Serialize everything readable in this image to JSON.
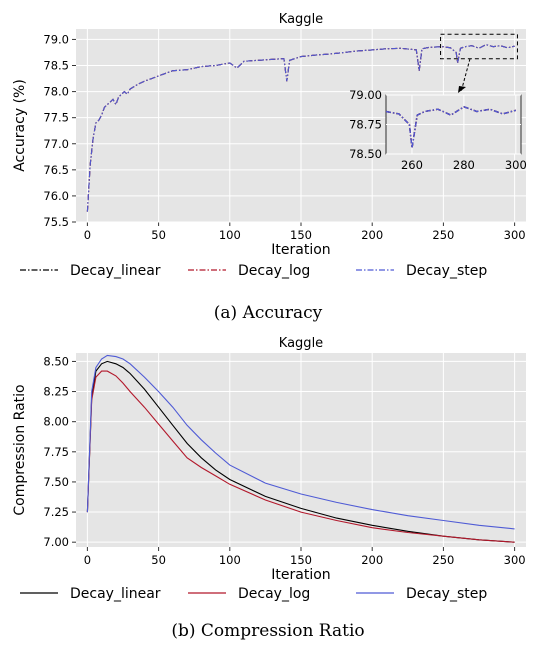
{
  "chart_data": [
    {
      "type": "line",
      "title": "Kaggle",
      "xlabel": "Iteration",
      "ylabel": "Accuracy (%)",
      "xlim": [
        -8,
        308
      ],
      "ylim": [
        75.5,
        79.2
      ],
      "xticks": [
        0,
        50,
        100,
        150,
        200,
        250,
        300
      ],
      "yticks": [
        75.5,
        76.0,
        76.5,
        77.0,
        77.5,
        78.0,
        78.5,
        79.0
      ],
      "xtick_labels": [
        "0",
        "50",
        "100",
        "150",
        "200",
        "250",
        "300"
      ],
      "ytick_labels": [
        "75.5",
        "76.0",
        "76.5",
        "77.0",
        "77.5",
        "78.0",
        "78.5",
        "79.0"
      ],
      "grid": true,
      "legend": "below",
      "caption": "(a) Accuracy",
      "series": [
        {
          "name": "Decay_linear",
          "color": "#000000",
          "dash": "dashdot",
          "x": [
            0,
            2,
            4,
            6,
            8,
            10,
            12,
            14,
            16,
            18,
            20,
            22,
            24,
            26,
            28,
            30,
            33,
            36,
            40,
            45,
            50,
            55,
            60,
            70,
            80,
            90,
            100,
            105,
            110,
            120,
            130,
            138,
            140,
            142,
            150,
            160,
            170,
            180,
            190,
            200,
            210,
            220,
            231,
            233,
            235,
            240,
            250,
            255,
            259,
            260,
            262,
            265,
            270,
            275,
            280,
            285,
            290,
            295,
            300
          ],
          "y": [
            75.7,
            76.6,
            77.1,
            77.4,
            77.45,
            77.55,
            77.7,
            77.75,
            77.8,
            77.85,
            77.75,
            77.9,
            77.95,
            78.0,
            77.95,
            78.05,
            78.1,
            78.15,
            78.2,
            78.25,
            78.3,
            78.35,
            78.4,
            78.42,
            78.48,
            78.5,
            78.55,
            78.45,
            78.58,
            78.6,
            78.62,
            78.63,
            78.2,
            78.6,
            78.67,
            78.7,
            78.72,
            78.75,
            78.78,
            78.8,
            78.82,
            78.83,
            78.8,
            78.4,
            78.82,
            78.85,
            78.86,
            78.84,
            78.75,
            78.55,
            78.83,
            78.86,
            78.88,
            78.83,
            78.9,
            78.86,
            78.88,
            78.84,
            78.87
          ]
        },
        {
          "name": "Decay_log",
          "color": "#b2182b",
          "dash": "dashdot",
          "x": [
            0,
            2,
            4,
            6,
            8,
            10,
            12,
            14,
            16,
            18,
            20,
            22,
            24,
            26,
            28,
            30,
            33,
            36,
            40,
            45,
            50,
            55,
            60,
            70,
            80,
            90,
            100,
            105,
            110,
            120,
            130,
            138,
            140,
            142,
            150,
            160,
            170,
            180,
            190,
            200,
            210,
            220,
            231,
            233,
            235,
            240,
            250,
            255,
            259,
            260,
            262,
            265,
            270,
            275,
            280,
            285,
            290,
            295,
            300
          ],
          "y": [
            75.7,
            76.6,
            77.1,
            77.4,
            77.45,
            77.55,
            77.7,
            77.75,
            77.8,
            77.85,
            77.75,
            77.9,
            77.95,
            78.0,
            77.95,
            78.05,
            78.1,
            78.15,
            78.2,
            78.25,
            78.3,
            78.35,
            78.4,
            78.42,
            78.48,
            78.5,
            78.55,
            78.45,
            78.58,
            78.6,
            78.62,
            78.63,
            78.2,
            78.6,
            78.67,
            78.7,
            78.72,
            78.75,
            78.78,
            78.8,
            78.82,
            78.83,
            78.8,
            78.4,
            78.82,
            78.85,
            78.86,
            78.84,
            78.75,
            78.55,
            78.83,
            78.86,
            78.88,
            78.83,
            78.9,
            78.86,
            78.88,
            78.84,
            78.87
          ]
        },
        {
          "name": "Decay_step",
          "color": "#4f5bd5",
          "dash": "dashdot",
          "x": [
            0,
            2,
            4,
            6,
            8,
            10,
            12,
            14,
            16,
            18,
            20,
            22,
            24,
            26,
            28,
            30,
            33,
            36,
            40,
            45,
            50,
            55,
            60,
            70,
            80,
            90,
            100,
            105,
            110,
            120,
            130,
            138,
            140,
            142,
            150,
            160,
            170,
            180,
            190,
            200,
            210,
            220,
            231,
            233,
            235,
            240,
            250,
            255,
            259,
            260,
            262,
            265,
            270,
            275,
            280,
            285,
            290,
            295,
            300
          ],
          "y": [
            75.7,
            76.6,
            77.1,
            77.4,
            77.45,
            77.55,
            77.7,
            77.75,
            77.8,
            77.85,
            77.75,
            77.9,
            77.95,
            78.0,
            77.95,
            78.05,
            78.1,
            78.15,
            78.2,
            78.25,
            78.3,
            78.35,
            78.4,
            78.42,
            78.48,
            78.5,
            78.55,
            78.45,
            78.58,
            78.6,
            78.62,
            78.63,
            78.2,
            78.6,
            78.67,
            78.7,
            78.72,
            78.75,
            78.78,
            78.8,
            78.82,
            78.83,
            78.8,
            78.4,
            78.82,
            78.85,
            78.86,
            78.84,
            78.75,
            78.55,
            78.83,
            78.86,
            78.88,
            78.83,
            78.9,
            78.86,
            78.88,
            78.84,
            78.87
          ]
        }
      ],
      "inset": {
        "xlim": [
          250,
          302
        ],
        "ylim": [
          78.5,
          79.0
        ],
        "xticks": [
          260,
          280,
          300
        ],
        "yticks": [
          78.5,
          78.75,
          79.0
        ],
        "xtick_labels": [
          "260",
          "280",
          "300"
        ],
        "ytick_labels": [
          "78.50",
          "78.75",
          "79.00"
        ],
        "zoom_region": {
          "x": [
            248,
            302
          ],
          "y": [
            78.63,
            79.1
          ]
        }
      }
    },
    {
      "type": "line",
      "title": "Kaggle",
      "xlabel": "Iteration",
      "ylabel": "Compression Ratio",
      "xlim": [
        -8,
        308
      ],
      "ylim": [
        6.96,
        8.57
      ],
      "xticks": [
        0,
        50,
        100,
        150,
        200,
        250,
        300
      ],
      "yticks": [
        7.0,
        7.25,
        7.5,
        7.75,
        8.0,
        8.25,
        8.5
      ],
      "xtick_labels": [
        "0",
        "50",
        "100",
        "150",
        "200",
        "250",
        "300"
      ],
      "ytick_labels": [
        "7.00",
        "7.25",
        "7.50",
        "7.75",
        "8.00",
        "8.25",
        "8.50"
      ],
      "grid": true,
      "legend": "below",
      "caption": "(b) Compression Ratio",
      "series": [
        {
          "name": "Decay_linear",
          "color": "#000000",
          "dash": "solid",
          "x": [
            0,
            3,
            6,
            10,
            14,
            20,
            25,
            30,
            40,
            50,
            60,
            70,
            80,
            90,
            100,
            125,
            150,
            175,
            200,
            225,
            250,
            275,
            300
          ],
          "y": [
            7.25,
            8.2,
            8.42,
            8.48,
            8.5,
            8.48,
            8.45,
            8.4,
            8.27,
            8.12,
            7.97,
            7.82,
            7.7,
            7.6,
            7.52,
            7.38,
            7.28,
            7.2,
            7.14,
            7.09,
            7.05,
            7.02,
            7.0
          ]
        },
        {
          "name": "Decay_log",
          "color": "#b2182b",
          "dash": "solid",
          "x": [
            0,
            3,
            6,
            10,
            14,
            20,
            25,
            30,
            40,
            50,
            60,
            70,
            80,
            90,
            100,
            125,
            150,
            175,
            200,
            225,
            250,
            275,
            300
          ],
          "y": [
            7.25,
            8.18,
            8.37,
            8.42,
            8.42,
            8.38,
            8.32,
            8.25,
            8.12,
            7.98,
            7.84,
            7.7,
            7.62,
            7.55,
            7.48,
            7.35,
            7.25,
            7.18,
            7.12,
            7.08,
            7.05,
            7.02,
            7.0
          ]
        },
        {
          "name": "Decay_step",
          "color": "#4f5bd5",
          "dash": "solid",
          "x": [
            0,
            3,
            6,
            10,
            14,
            20,
            25,
            30,
            40,
            50,
            60,
            70,
            80,
            90,
            100,
            125,
            150,
            175,
            200,
            225,
            250,
            275,
            300
          ],
          "y": [
            7.25,
            8.25,
            8.45,
            8.52,
            8.55,
            8.54,
            8.52,
            8.48,
            8.37,
            8.25,
            8.12,
            7.97,
            7.85,
            7.74,
            7.64,
            7.49,
            7.4,
            7.33,
            7.27,
            7.22,
            7.18,
            7.14,
            7.11
          ]
        }
      ]
    }
  ],
  "colors": {
    "panel_bg": "#e5e5e5",
    "grid": "#ffffff",
    "inset_box": "#000000"
  }
}
